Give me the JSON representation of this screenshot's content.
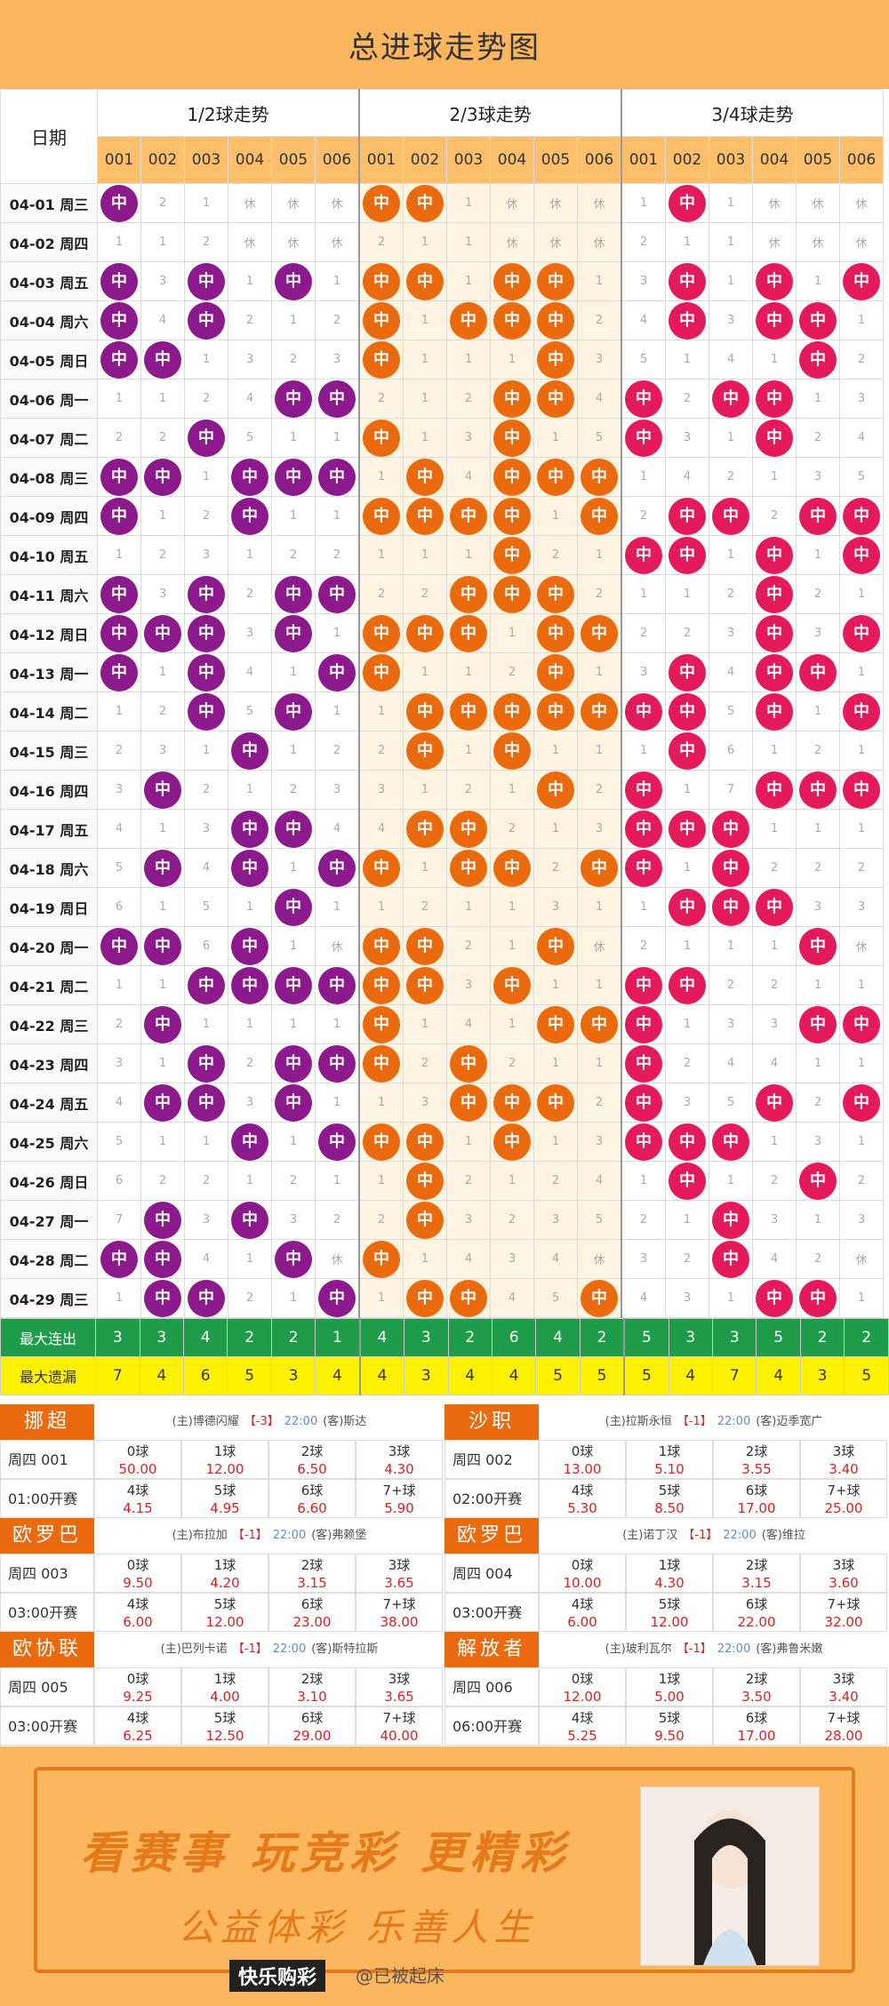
{
  "title": "总进球走势图",
  "groups": [
    "1/2球走势",
    "2/3球走势",
    "3/4球走势"
  ],
  "date_header": "日期",
  "cols": [
    "001",
    "002",
    "003",
    "004",
    "005",
    "006"
  ],
  "hit_label": "中",
  "rows": [
    {
      "d": "04-01 周三",
      "c": [
        "中",
        "2",
        "1",
        "休",
        "休",
        "休",
        "中",
        "中",
        "1",
        "休",
        "休",
        "休",
        "1",
        "中",
        "1",
        "休",
        "休",
        "休"
      ]
    },
    {
      "d": "04-02 周四",
      "c": [
        "1",
        "1",
        "2",
        "休",
        "休",
        "休",
        "2",
        "1",
        "1",
        "休",
        "休",
        "休",
        "2",
        "1",
        "1",
        "休",
        "休",
        "休"
      ]
    },
    {
      "d": "04-03 周五",
      "c": [
        "中",
        "3",
        "中",
        "1",
        "中",
        "1",
        "中",
        "中",
        "1",
        "中",
        "中",
        "1",
        "3",
        "中",
        "1",
        "中",
        "1",
        "中"
      ]
    },
    {
      "d": "04-04 周六",
      "c": [
        "中",
        "4",
        "中",
        "2",
        "1",
        "2",
        "中",
        "1",
        "中",
        "中",
        "中",
        "2",
        "4",
        "中",
        "3",
        "中",
        "中",
        "1"
      ]
    },
    {
      "d": "04-05 周日",
      "c": [
        "中",
        "中",
        "1",
        "3",
        "2",
        "3",
        "中",
        "1",
        "1",
        "1",
        "中",
        "3",
        "5",
        "1",
        "4",
        "1",
        "中",
        "2"
      ]
    },
    {
      "d": "04-06 周一",
      "c": [
        "1",
        "1",
        "2",
        "4",
        "中",
        "中",
        "2",
        "1",
        "2",
        "中",
        "中",
        "4",
        "中",
        "2",
        "中",
        "中",
        "1",
        "3"
      ]
    },
    {
      "d": "04-07 周二",
      "c": [
        "2",
        "2",
        "中",
        "5",
        "1",
        "1",
        "中",
        "1",
        "3",
        "中",
        "1",
        "5",
        "中",
        "3",
        "1",
        "中",
        "2",
        "4"
      ]
    },
    {
      "d": "04-08 周三",
      "c": [
        "中",
        "中",
        "1",
        "中",
        "中",
        "中",
        "1",
        "中",
        "4",
        "中",
        "中",
        "中",
        "1",
        "4",
        "2",
        "1",
        "3",
        "5"
      ]
    },
    {
      "d": "04-09 周四",
      "c": [
        "中",
        "1",
        "2",
        "中",
        "1",
        "1",
        "中",
        "中",
        "中",
        "中",
        "1",
        "中",
        "2",
        "中",
        "中",
        "2",
        "中",
        "中"
      ]
    },
    {
      "d": "04-10 周五",
      "c": [
        "1",
        "2",
        "3",
        "1",
        "2",
        "2",
        "1",
        "1",
        "1",
        "中",
        "2",
        "1",
        "中",
        "中",
        "1",
        "中",
        "1",
        "中"
      ]
    },
    {
      "d": "04-11 周六",
      "c": [
        "中",
        "3",
        "中",
        "2",
        "中",
        "中",
        "2",
        "2",
        "中",
        "中",
        "中",
        "2",
        "1",
        "1",
        "2",
        "中",
        "2",
        "1"
      ]
    },
    {
      "d": "04-12 周日",
      "c": [
        "中",
        "中",
        "中",
        "3",
        "中",
        "1",
        "中",
        "中",
        "中",
        "1",
        "中",
        "中",
        "2",
        "2",
        "3",
        "中",
        "3",
        "中"
      ]
    },
    {
      "d": "04-13 周一",
      "c": [
        "中",
        "1",
        "中",
        "4",
        "1",
        "中",
        "中",
        "1",
        "1",
        "2",
        "中",
        "1",
        "3",
        "中",
        "4",
        "中",
        "中",
        "1"
      ]
    },
    {
      "d": "04-14 周二",
      "c": [
        "1",
        "2",
        "中",
        "5",
        "中",
        "1",
        "1",
        "中",
        "中",
        "中",
        "中",
        "中",
        "中",
        "中",
        "5",
        "中",
        "1",
        "中"
      ]
    },
    {
      "d": "04-15 周三",
      "c": [
        "2",
        "3",
        "1",
        "中",
        "1",
        "2",
        "2",
        "中",
        "1",
        "中",
        "1",
        "1",
        "1",
        "中",
        "6",
        "1",
        "2",
        "1"
      ]
    },
    {
      "d": "04-16 周四",
      "c": [
        "3",
        "中",
        "2",
        "1",
        "2",
        "3",
        "3",
        "1",
        "2",
        "1",
        "中",
        "2",
        "中",
        "1",
        "7",
        "中",
        "中",
        "中"
      ]
    },
    {
      "d": "04-17 周五",
      "c": [
        "4",
        "1",
        "3",
        "中",
        "中",
        "4",
        "4",
        "中",
        "中",
        "2",
        "1",
        "3",
        "中",
        "中",
        "中",
        "1",
        "1",
        "1"
      ]
    },
    {
      "d": "04-18 周六",
      "c": [
        "5",
        "中",
        "4",
        "中",
        "1",
        "中",
        "中",
        "1",
        "中",
        "中",
        "2",
        "中",
        "中",
        "1",
        "中",
        "2",
        "2",
        "2"
      ]
    },
    {
      "d": "04-19 周日",
      "c": [
        "6",
        "1",
        "5",
        "1",
        "中",
        "1",
        "1",
        "2",
        "1",
        "1",
        "3",
        "1",
        "1",
        "中",
        "中",
        "中",
        "3",
        "3"
      ]
    },
    {
      "d": "04-20 周一",
      "c": [
        "中",
        "中",
        "6",
        "中",
        "1",
        "休",
        "中",
        "中",
        "2",
        "1",
        "中",
        "休",
        "2",
        "1",
        "1",
        "1",
        "中",
        "休"
      ]
    },
    {
      "d": "04-21 周二",
      "c": [
        "1",
        "1",
        "中",
        "中",
        "中",
        "中",
        "中",
        "中",
        "3",
        "中",
        "1",
        "1",
        "中",
        "中",
        "2",
        "2",
        "1",
        "1"
      ]
    },
    {
      "d": "04-22 周三",
      "c": [
        "2",
        "中",
        "1",
        "1",
        "1",
        "1",
        "中",
        "1",
        "4",
        "1",
        "中",
        "中",
        "中",
        "1",
        "3",
        "3",
        "中",
        "中"
      ]
    },
    {
      "d": "04-23 周四",
      "c": [
        "3",
        "1",
        "中",
        "2",
        "中",
        "中",
        "中",
        "2",
        "中",
        "2",
        "1",
        "1",
        "中",
        "2",
        "4",
        "4",
        "1",
        "1"
      ]
    },
    {
      "d": "04-24 周五",
      "c": [
        "4",
        "中",
        "中",
        "3",
        "中",
        "1",
        "1",
        "3",
        "中",
        "中",
        "中",
        "2",
        "中",
        "3",
        "5",
        "中",
        "2",
        "中"
      ]
    },
    {
      "d": "04-25 周六",
      "c": [
        "5",
        "1",
        "1",
        "中",
        "1",
        "中",
        "中",
        "中",
        "1",
        "中",
        "1",
        "3",
        "中",
        "中",
        "中",
        "1",
        "3",
        "1"
      ]
    },
    {
      "d": "04-26 周日",
      "c": [
        "6",
        "2",
        "2",
        "1",
        "2",
        "1",
        "1",
        "中",
        "2",
        "1",
        "2",
        "4",
        "1",
        "中",
        "1",
        "2",
        "中",
        "2"
      ]
    },
    {
      "d": "04-27 周一",
      "c": [
        "7",
        "中",
        "3",
        "中",
        "3",
        "2",
        "2",
        "中",
        "3",
        "2",
        "3",
        "5",
        "2",
        "1",
        "中",
        "3",
        "1",
        "3"
      ]
    },
    {
      "d": "04-28 周二",
      "c": [
        "中",
        "中",
        "4",
        "1",
        "中",
        "休",
        "中",
        "1",
        "4",
        "3",
        "4",
        "休",
        "3",
        "2",
        "中",
        "4",
        "2",
        "休"
      ]
    },
    {
      "d": "04-29 周三",
      "c": [
        "1",
        "中",
        "中",
        "2",
        "1",
        "中",
        "1",
        "中",
        "中",
        "4",
        "5",
        "中",
        "4",
        "3",
        "1",
        "中",
        "中",
        "1"
      ]
    }
  ],
  "stats": {
    "max_streak_label": "最大连出",
    "max_streak": [
      "3",
      "3",
      "4",
      "2",
      "2",
      "1",
      "4",
      "3",
      "2",
      "6",
      "4",
      "2",
      "5",
      "3",
      "3",
      "5",
      "2",
      "2"
    ],
    "max_miss_label": "最大遗漏",
    "max_miss": [
      "7",
      "4",
      "6",
      "5",
      "3",
      "4",
      "4",
      "3",
      "4",
      "4",
      "5",
      "5",
      "5",
      "4",
      "7",
      "4",
      "3",
      "5"
    ]
  },
  "kickoff_suffix": "开赛",
  "matches": [
    {
      "league": "挪超",
      "home": "(主)博德闪耀",
      "hc": "【-3】",
      "time": "22:00",
      "away": "(客)斯达",
      "no": "周四 001",
      "start": "01:00开赛",
      "odds": [
        [
          "0球",
          "50.00"
        ],
        [
          "1球",
          "12.00"
        ],
        [
          "2球",
          "6.50"
        ],
        [
          "3球",
          "4.30"
        ],
        [
          "4球",
          "4.15"
        ],
        [
          "5球",
          "4.95"
        ],
        [
          "6球",
          "6.60"
        ],
        [
          "7+球",
          "5.90"
        ]
      ]
    },
    {
      "league": "沙职",
      "home": "(主)拉斯永恒",
      "hc": "【-1】",
      "time": "22:00",
      "away": "(客)迈季宽广",
      "no": "周四 002",
      "start": "02:00开赛",
      "odds": [
        [
          "0球",
          "13.00"
        ],
        [
          "1球",
          "5.10"
        ],
        [
          "2球",
          "3.55"
        ],
        [
          "3球",
          "3.40"
        ],
        [
          "4球",
          "5.30"
        ],
        [
          "5球",
          "8.50"
        ],
        [
          "6球",
          "17.00"
        ],
        [
          "7+球",
          "25.00"
        ]
      ]
    },
    {
      "league": "欧罗巴",
      "home": "(主)布拉加",
      "hc": "【-1】",
      "time": "22:00",
      "away": "(客)弗赖堡",
      "no": "周四 003",
      "start": "03:00开赛",
      "odds": [
        [
          "0球",
          "9.50"
        ],
        [
          "1球",
          "4.20"
        ],
        [
          "2球",
          "3.15"
        ],
        [
          "3球",
          "3.65"
        ],
        [
          "4球",
          "6.00"
        ],
        [
          "5球",
          "12.00"
        ],
        [
          "6球",
          "23.00"
        ],
        [
          "7+球",
          "38.00"
        ]
      ]
    },
    {
      "league": "欧罗巴",
      "home": "(主)诺丁汉",
      "hc": "【-1】",
      "time": "22:00",
      "away": "(客)维拉",
      "no": "周四 004",
      "start": "03:00开赛",
      "odds": [
        [
          "0球",
          "10.00"
        ],
        [
          "1球",
          "4.30"
        ],
        [
          "2球",
          "3.15"
        ],
        [
          "3球",
          "3.60"
        ],
        [
          "4球",
          "6.00"
        ],
        [
          "5球",
          "12.00"
        ],
        [
          "6球",
          "22.00"
        ],
        [
          "7+球",
          "32.00"
        ]
      ]
    },
    {
      "league": "欧协联",
      "home": "(主)巴列卡诺",
      "hc": "【-1】",
      "time": "22:00",
      "away": "(客)斯特拉斯",
      "no": "周四 005",
      "start": "03:00开赛",
      "odds": [
        [
          "0球",
          "9.25"
        ],
        [
          "1球",
          "4.00"
        ],
        [
          "2球",
          "3.10"
        ],
        [
          "3球",
          "3.65"
        ],
        [
          "4球",
          "6.25"
        ],
        [
          "5球",
          "12.50"
        ],
        [
          "6球",
          "29.00"
        ],
        [
          "7+球",
          "40.00"
        ]
      ]
    },
    {
      "league": "解放者",
      "home": "(主)玻利瓦尔",
      "hc": "【-1】",
      "time": "22:00",
      "away": "(客)弗鲁米嫩",
      "no": "周四 006",
      "start": "06:00开赛",
      "odds": [
        [
          "0球",
          "12.00"
        ],
        [
          "1球",
          "5.00"
        ],
        [
          "2球",
          "3.50"
        ],
        [
          "3球",
          "3.40"
        ],
        [
          "4球",
          "5.25"
        ],
        [
          "5球",
          "9.50"
        ],
        [
          "6球",
          "17.00"
        ],
        [
          "7+球",
          "28.00"
        ]
      ]
    }
  ],
  "banner": {
    "slogan1": "看赛事 玩竞彩 更精彩",
    "slogan2": "公益体彩 乐善人生",
    "brand": "快乐购彩",
    "handle": "@已被起床"
  },
  "colors": {
    "group1": "#8c1a8c",
    "group2": "#ea6a0d",
    "group3": "#e51a5b",
    "header_bg": "#fcb65e",
    "streak_bg": "#1e9c4a",
    "miss_bg": "#fff200"
  }
}
